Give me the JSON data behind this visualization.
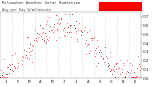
{
  "title_line1": "Milwaukee Weather Solar Radiation",
  "title_line2": "Avg per Day W/m2/minute",
  "bg_color": "#ffffff",
  "plot_bg_color": "#ffffff",
  "grid_color": "#bbbbbb",
  "dot_color_red": "#ff0000",
  "dot_color_black": "#000000",
  "legend_box_color": "#ff0000",
  "ylim": [
    0.0,
    0.75
  ],
  "xlim": [
    0,
    365
  ],
  "month_ticks": [
    0,
    31,
    59,
    90,
    120,
    151,
    181,
    212,
    243,
    273,
    304,
    334,
    365
  ],
  "month_labels": [
    "J",
    "F",
    "M",
    "A",
    "M",
    "J",
    "J",
    "A",
    "S",
    "O",
    "N",
    "D"
  ],
  "ytick_vals": [
    0.0,
    0.1,
    0.2,
    0.3,
    0.4,
    0.5,
    0.6,
    0.7
  ],
  "num_points": 220,
  "seed": 42
}
